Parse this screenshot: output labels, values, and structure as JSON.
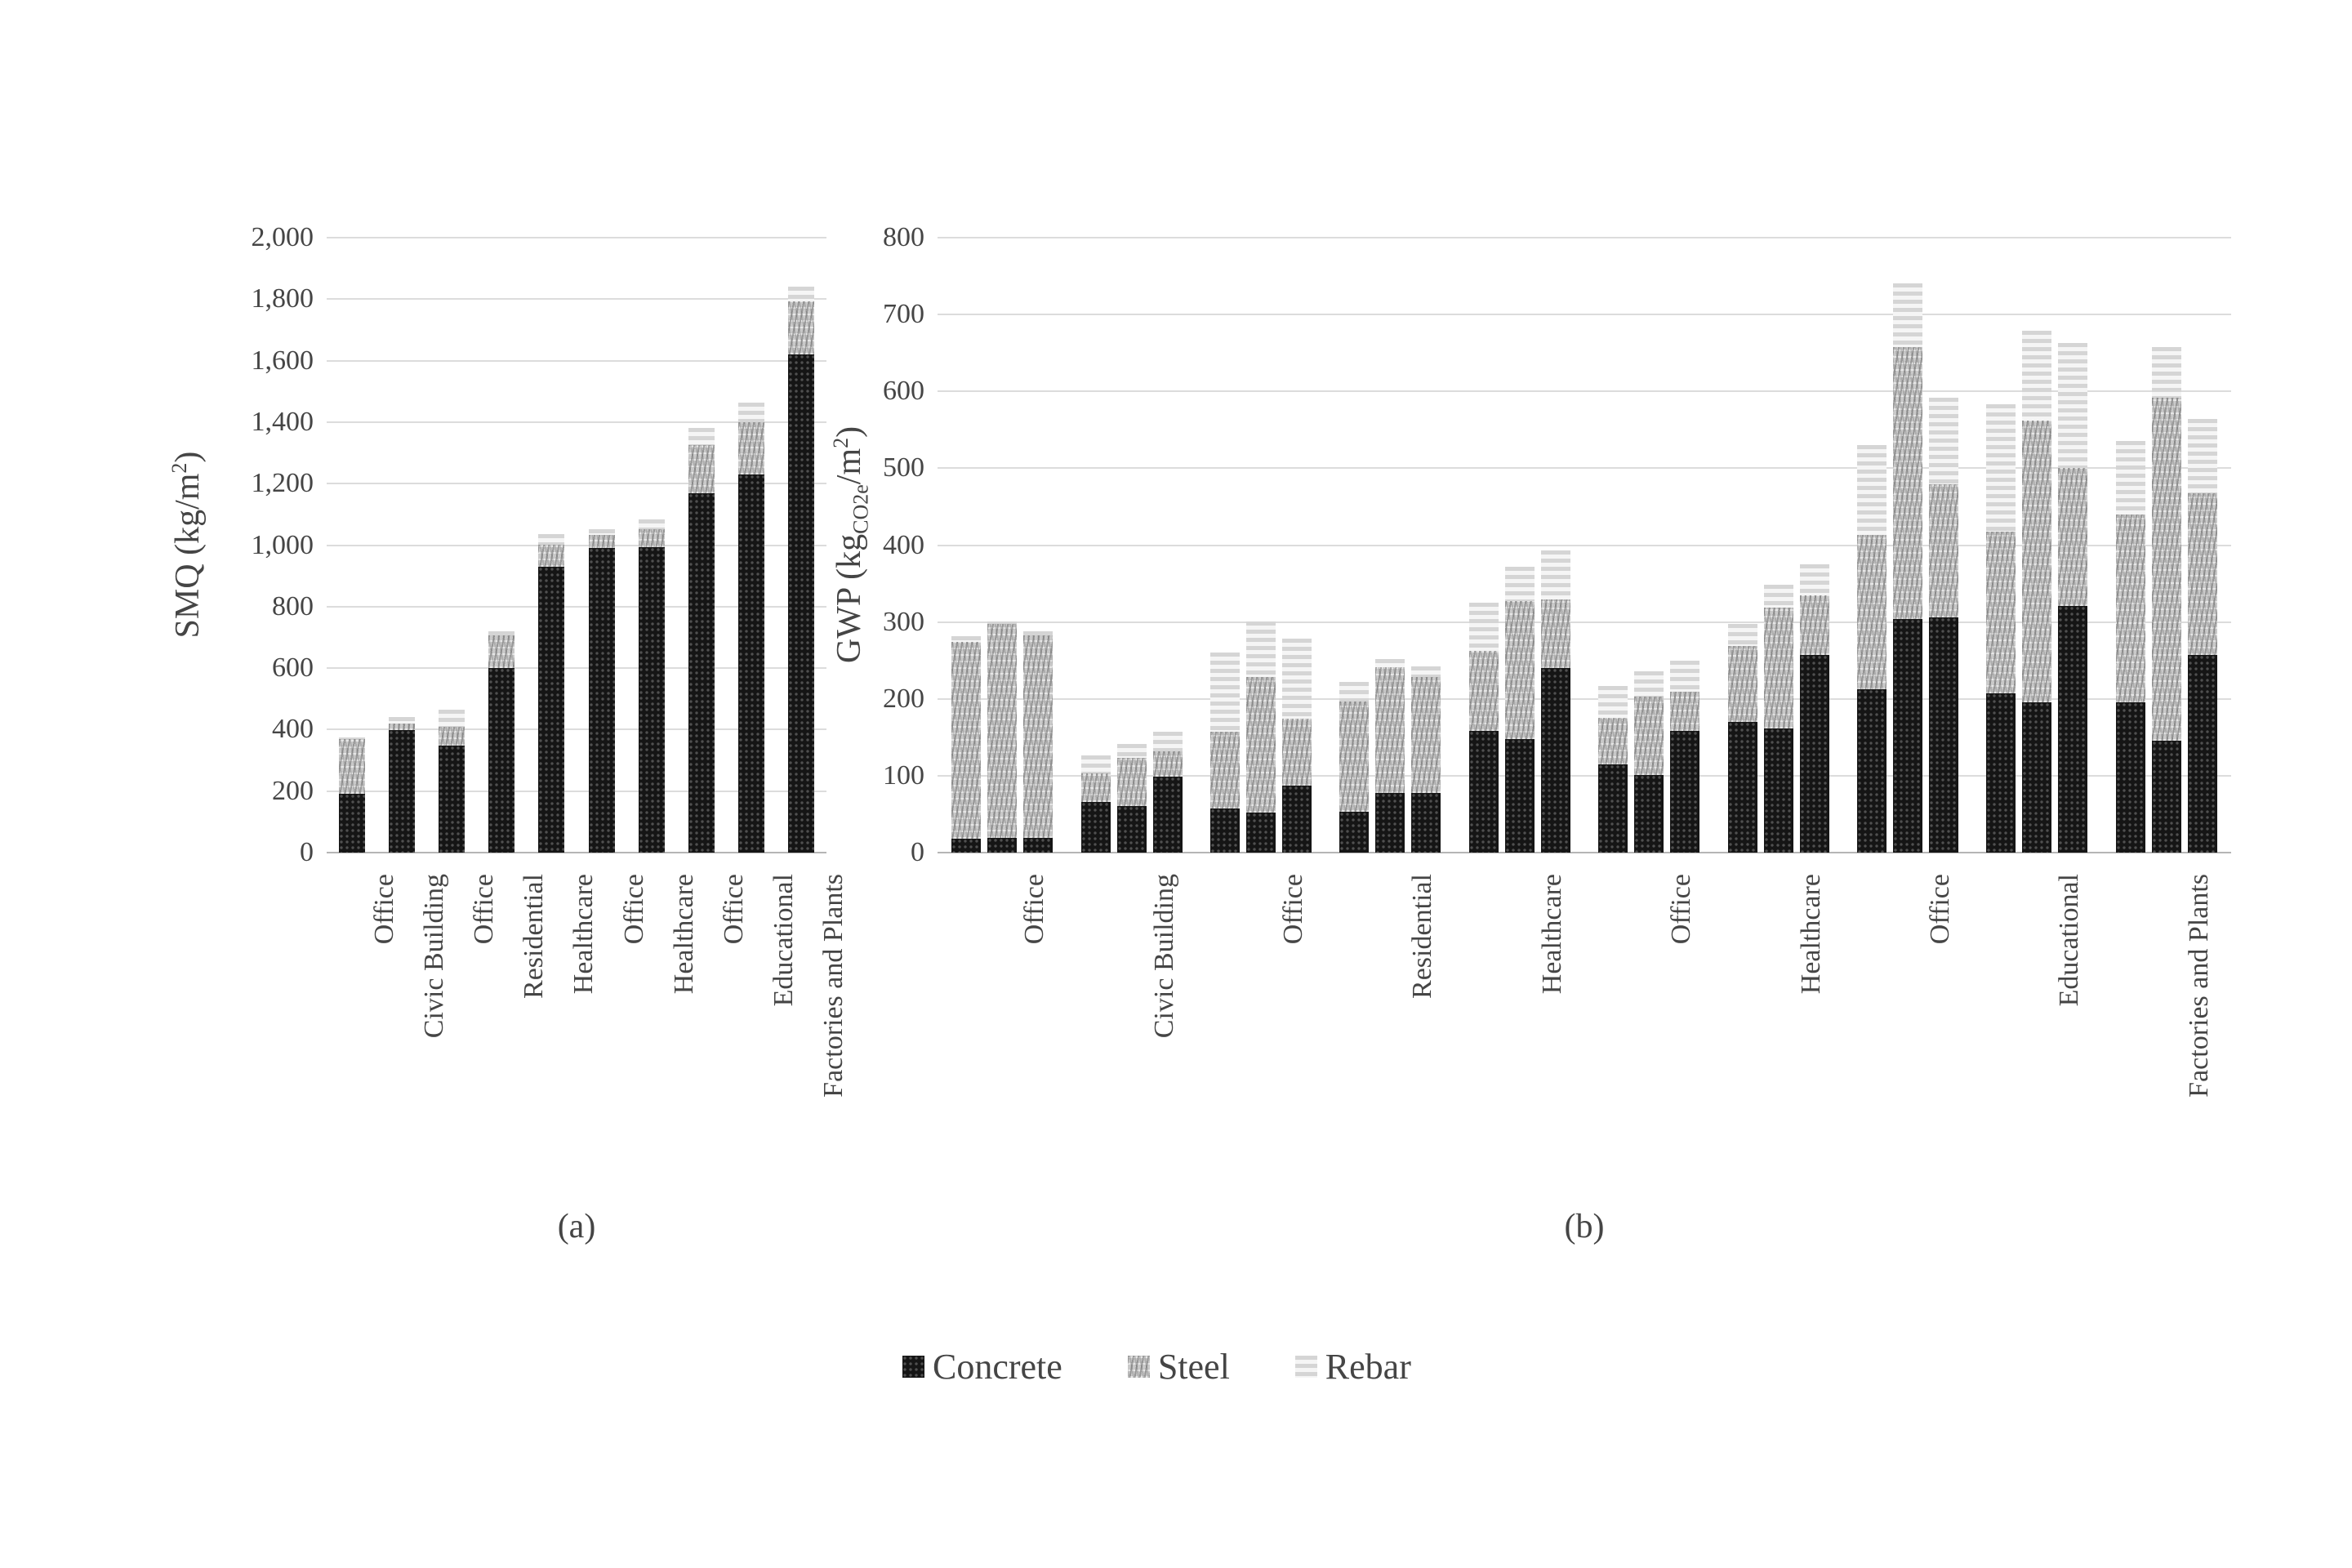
{
  "figure": {
    "captions": {
      "a": "(a)",
      "b": "(b)"
    },
    "legend": [
      {
        "label": "Concrete",
        "pattern": "concrete"
      },
      {
        "label": "Steel",
        "pattern": "steel"
      },
      {
        "label": "Rebar",
        "pattern": "rebar"
      }
    ],
    "colors": {
      "concrete": "#151515",
      "steel": "#c9c9c9",
      "rebar": "#f0f0f0",
      "gridline": "#dcdcdc",
      "axis_text": "#454545"
    }
  },
  "chart_data": [
    {
      "id": "a",
      "type": "bar",
      "stacked": true,
      "title": "",
      "xlabel": "",
      "ylabel": "SMQ (kg/m2)",
      "ylabel_parts": {
        "prefix": "SMQ (kg/m",
        "sup": "2",
        "suffix": ")"
      },
      "ylim": [
        0,
        2000
      ],
      "ytick_step": 200,
      "ytick_labels": [
        "0",
        "200",
        "400",
        "600",
        "800",
        "1,000",
        "1,200",
        "1,400",
        "1,600",
        "1,800",
        "2,000"
      ],
      "grid": true,
      "legend_position": "bottom",
      "bars_per_category": 1,
      "categories": [
        "Office",
        "Civic Building",
        "Office",
        "Residential",
        "Healthcare",
        "Office",
        "Healthcare",
        "Office",
        "Educational",
        "Factories and Plants"
      ],
      "series": [
        {
          "name": "Concrete",
          "pattern": "concrete",
          "values": [
            190,
            398,
            347,
            600,
            930,
            990,
            993,
            1170,
            1230,
            1620
          ]
        },
        {
          "name": "Steel",
          "pattern": "steel",
          "values": [
            180,
            22,
            63,
            106,
            72,
            43,
            60,
            155,
            170,
            172
          ]
        },
        {
          "name": "Rebar",
          "pattern": "rebar",
          "values": [
            5,
            20,
            56,
            14,
            35,
            19,
            30,
            55,
            64,
            48
          ]
        }
      ]
    },
    {
      "id": "b",
      "type": "bar",
      "stacked": true,
      "title": "",
      "xlabel": "",
      "ylabel": "GWP (kgCO2e/m2)",
      "ylabel_parts": {
        "prefix": "GWP (kg",
        "sub": "CO2e",
        "mid": "/m",
        "sup": "2",
        "suffix": ")"
      },
      "ylim": [
        0,
        800
      ],
      "ytick_step": 100,
      "ytick_labels": [
        "0",
        "100",
        "200",
        "300",
        "400",
        "500",
        "600",
        "700",
        "800"
      ],
      "grid": true,
      "legend_position": "bottom",
      "bars_per_category": 3,
      "categories": [
        "Office",
        "Civic Building",
        "Office",
        "Residential",
        "Healthcare",
        "Office",
        "Healthcare",
        "Office",
        "Educational",
        "Factories and Plants"
      ],
      "series": [
        {
          "name": "Concrete",
          "pattern": "concrete",
          "values": [
            [
              18,
              19,
              19
            ],
            [
              66,
              61,
              99
            ],
            [
              57,
              52,
              87
            ],
            [
              53,
              78,
              78
            ],
            [
              158,
              148,
              240
            ],
            [
              115,
              101,
              158
            ],
            [
              170,
              161,
              257
            ],
            [
              212,
              304,
              306
            ],
            [
              207,
              195,
              321
            ],
            [
              195,
              146,
              257
            ]
          ]
        },
        {
          "name": "Steel",
          "pattern": "steel",
          "values": [
            [
              256,
              278,
              264
            ],
            [
              37,
              62,
              33
            ],
            [
              100,
              176,
              87
            ],
            [
              144,
              163,
              150
            ],
            [
              104,
              179,
              89
            ],
            [
              60,
              102,
              51
            ],
            [
              99,
              158,
              78
            ],
            [
              201,
              354,
              173
            ],
            [
              211,
              367,
              179
            ],
            [
              245,
              446,
              210
            ]
          ]
        },
        {
          "name": "Rebar",
          "pattern": "rebar",
          "values": [
            [
              8,
              4,
              5
            ],
            [
              24,
              18,
              25
            ],
            [
              103,
              73,
              104
            ],
            [
              25,
              11,
              14
            ],
            [
              63,
              45,
              64
            ],
            [
              42,
              33,
              41
            ],
            [
              29,
              30,
              40
            ],
            [
              117,
              83,
              113
            ],
            [
              165,
              117,
              163
            ],
            [
              96,
              66,
              97
            ]
          ]
        }
      ]
    }
  ]
}
